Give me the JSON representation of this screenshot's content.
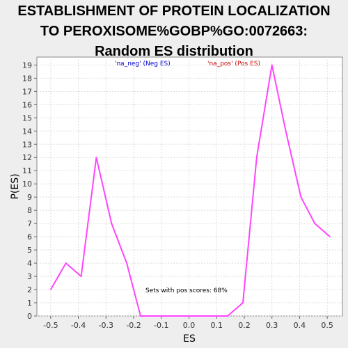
{
  "chart_data": {
    "type": "line",
    "title_lines": [
      "ESTABLISHMENT OF PROTEIN LOCALIZATION",
      "TO PEROXISOME%GOBP%GO:0072663:",
      "Random ES distribution"
    ],
    "xlabel": "ES",
    "ylabel": "P(ES)",
    "xlim": [
      -0.55,
      0.555
    ],
    "ylim": [
      0,
      19.6
    ],
    "x_ticks": [
      "-0.5",
      "-0.4",
      "-0.3",
      "-0.2",
      "-0.1",
      "0.0",
      "0.1",
      "0.2",
      "0.3",
      "0.4",
      "0.5"
    ],
    "y_ticks": [
      "0",
      "1",
      "2",
      "3",
      "4",
      "5",
      "6",
      "7",
      "8",
      "9",
      "10",
      "11",
      "12",
      "13",
      "14",
      "15",
      "16",
      "17",
      "18",
      "19"
    ],
    "grid": true,
    "legend": [
      {
        "label": "'na_neg' (Neg ES)",
        "color": "#0000cc"
      },
      {
        "label": "'na_pos' (Pos ES)",
        "color": "#cc0000"
      }
    ],
    "annotation": "Sets with pos scores: 68%",
    "series": [
      {
        "color": "#ff44ff",
        "x": [
          -0.5,
          -0.445,
          -0.39,
          -0.335,
          -0.28,
          -0.225,
          -0.175,
          0.14,
          0.195,
          0.245,
          0.3,
          0.35,
          0.405,
          0.455,
          0.51
        ],
        "y": [
          2,
          4,
          3,
          12,
          7,
          4,
          0,
          0,
          1,
          12,
          19,
          14,
          9,
          7,
          6
        ]
      }
    ]
  }
}
